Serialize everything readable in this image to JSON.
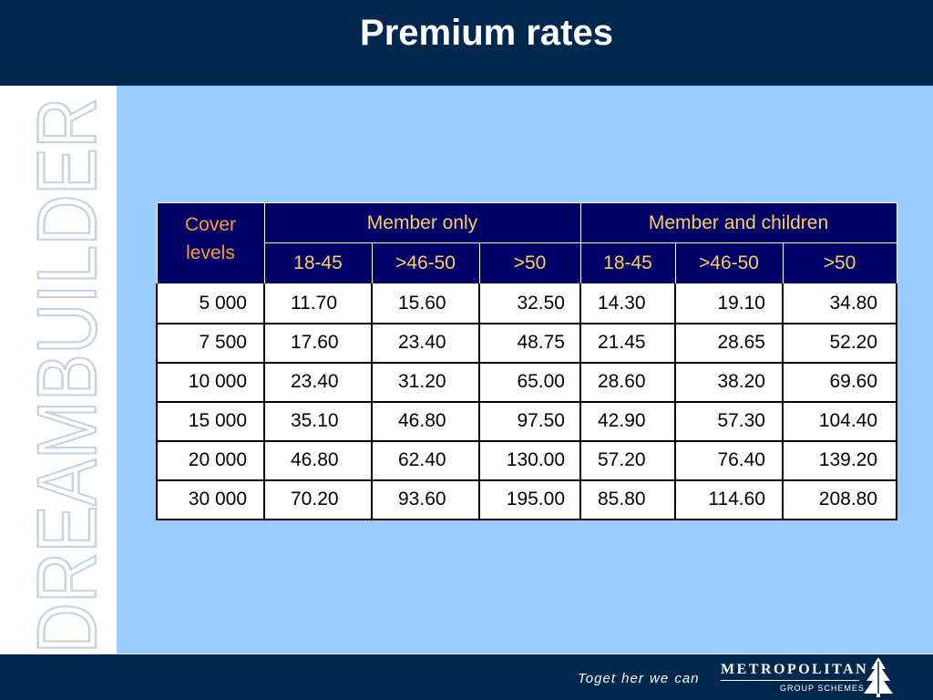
{
  "header": {
    "title": "Premium rates"
  },
  "sidebar": {
    "watermark": "DREAMBUILDER"
  },
  "table": {
    "cover_header": "Cover levels",
    "groups": [
      "Member only",
      "Member and children"
    ],
    "age_bands": [
      "18-45",
      ">46-50",
      ">50",
      "18-45",
      ">46-50",
      ">50"
    ],
    "rows": [
      [
        "5 000",
        "11.70",
        "15.60",
        "32.50",
        "14.30",
        "19.10",
        "34.80"
      ],
      [
        "7 500",
        "17.60",
        "23.40",
        "48.75",
        "21.45",
        "28.65",
        "52.20"
      ],
      [
        "10 000",
        "23.40",
        "31.20",
        "65.00",
        "28.60",
        "38.20",
        "69.60"
      ],
      [
        "15 000",
        "35.10",
        "46.80",
        "97.50",
        "42.90",
        "57.30",
        "104.40"
      ],
      [
        "20 000",
        "46.80",
        "62.40",
        "130.00",
        "57.20",
        "76.40",
        "139.20"
      ],
      [
        "30 000",
        "70.20",
        "93.60",
        "195.00",
        "85.80",
        "114.60",
        "208.80"
      ]
    ]
  },
  "footer": {
    "tagline": "Toget her we can",
    "brand": "METROPOLITAN",
    "brand_sub": "GROUP SCHEMES",
    "logo_icon": "metropolitan-tree-icon"
  },
  "colors": {
    "navy": "#00284f",
    "background": "#99ccff",
    "table_header": "#000066",
    "header_text": "#ff9933",
    "subheader_text": "#ffcc66"
  }
}
